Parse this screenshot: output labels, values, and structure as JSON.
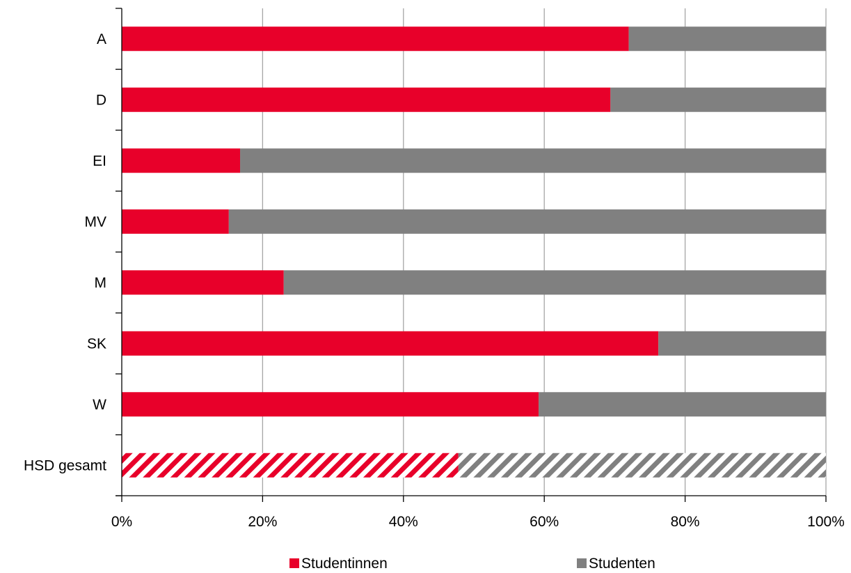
{
  "chart_data": {
    "type": "bar",
    "stacked": true,
    "orientation": "horizontal",
    "percent_stacked": true,
    "categories": [
      "A",
      "D",
      "EI",
      "MV",
      "M",
      "SK",
      "W",
      "HSD gesamt"
    ],
    "series": [
      {
        "name": "Studentinnen",
        "values": [
          72,
          69.4,
          16.8,
          15.2,
          23,
          76.2,
          59.2,
          47.8
        ],
        "color": "#e8002a"
      },
      {
        "name": "Studenten",
        "values": [
          28,
          30.6,
          83.2,
          84.8,
          77,
          23.8,
          40.8,
          52.2
        ],
        "color": "#808080"
      }
    ],
    "hatched_categories": [
      "HSD gesamt"
    ],
    "x_ticks": [
      "0%",
      "20%",
      "40%",
      "60%",
      "80%",
      "100%"
    ],
    "xlim": [
      0,
      100
    ],
    "grid": "vertical",
    "legend": "bottom",
    "title": "",
    "xlabel": "",
    "ylabel": ""
  }
}
